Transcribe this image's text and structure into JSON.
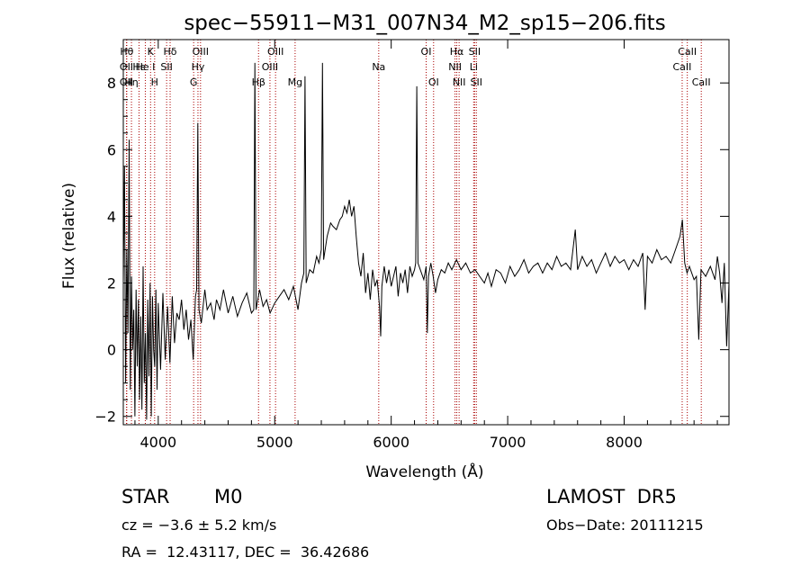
{
  "chart_data": {
    "type": "line",
    "title": "spec−55911−M31_007N34_M2_sp15−206.fits",
    "xlabel": "Wavelength (Å)",
    "ylabel": "Flux (relative)",
    "xlim": [
      3700,
      8900
    ],
    "ylim": [
      -2.25,
      9.3
    ],
    "x_ticks": [
      4000,
      5000,
      6000,
      7000,
      8000
    ],
    "y_ticks": [
      -2,
      0,
      2,
      4,
      6,
      8
    ],
    "grid": false,
    "legend": "none",
    "line_color": "#000000",
    "marker_line_color": "#aa0000",
    "series": [
      {
        "values": [
          [
            3700,
            2.0
          ],
          [
            3710,
            5.5
          ],
          [
            3720,
            -1.0
          ],
          [
            3730,
            3.0
          ],
          [
            3740,
            0.5
          ],
          [
            3750,
            6.3
          ],
          [
            3760,
            -1.2
          ],
          [
            3770,
            2.2
          ],
          [
            3780,
            0.0
          ],
          [
            3790,
            1.2
          ],
          [
            3800,
            -2.0
          ],
          [
            3810,
            1.8
          ],
          [
            3820,
            -0.5
          ],
          [
            3830,
            1.5
          ],
          [
            3840,
            -1.5
          ],
          [
            3850,
            1.0
          ],
          [
            3860,
            -1.8
          ],
          [
            3870,
            2.5
          ],
          [
            3880,
            -1.0
          ],
          [
            3890,
            0.5
          ],
          [
            3900,
            -2.1
          ],
          [
            3910,
            1.5
          ],
          [
            3920,
            -0.8
          ],
          [
            3930,
            2.0
          ],
          [
            3940,
            -2.0
          ],
          [
            3950,
            1.6
          ],
          [
            3960,
            0.0
          ],
          [
            3970,
            -0.5
          ],
          [
            3980,
            1.8
          ],
          [
            3990,
            -1.2
          ],
          [
            4000,
            1.4
          ],
          [
            4020,
            -0.6
          ],
          [
            4040,
            1.7
          ],
          [
            4060,
            -0.3
          ],
          [
            4080,
            1.3
          ],
          [
            4100,
            -0.4
          ],
          [
            4120,
            1.6
          ],
          [
            4140,
            0.2
          ],
          [
            4160,
            1.1
          ],
          [
            4180,
            0.9
          ],
          [
            4200,
            1.5
          ],
          [
            4220,
            0.6
          ],
          [
            4240,
            1.2
          ],
          [
            4260,
            0.3
          ],
          [
            4280,
            0.9
          ],
          [
            4300,
            -0.3
          ],
          [
            4320,
            1.6
          ],
          [
            4330,
            1.8
          ],
          [
            4340,
            6.8
          ],
          [
            4350,
            1.2
          ],
          [
            4370,
            0.8
          ],
          [
            4400,
            1.8
          ],
          [
            4420,
            1.2
          ],
          [
            4450,
            1.4
          ],
          [
            4480,
            0.9
          ],
          [
            4500,
            1.5
          ],
          [
            4530,
            1.2
          ],
          [
            4560,
            1.8
          ],
          [
            4600,
            1.1
          ],
          [
            4640,
            1.6
          ],
          [
            4680,
            1.0
          ],
          [
            4720,
            1.4
          ],
          [
            4760,
            1.7
          ],
          [
            4800,
            1.1
          ],
          [
            4820,
            1.2
          ],
          [
            4830,
            8.6
          ],
          [
            4840,
            1.2
          ],
          [
            4870,
            1.8
          ],
          [
            4900,
            1.3
          ],
          [
            4930,
            1.5
          ],
          [
            4960,
            1.1
          ],
          [
            5000,
            1.4
          ],
          [
            5040,
            1.6
          ],
          [
            5080,
            1.8
          ],
          [
            5120,
            1.5
          ],
          [
            5160,
            1.9
          ],
          [
            5200,
            1.2
          ],
          [
            5230,
            2.0
          ],
          [
            5250,
            2.3
          ],
          [
            5260,
            8.2
          ],
          [
            5270,
            2.0
          ],
          [
            5300,
            2.4
          ],
          [
            5330,
            2.3
          ],
          [
            5360,
            2.8
          ],
          [
            5380,
            2.6
          ],
          [
            5400,
            3.0
          ],
          [
            5410,
            8.6
          ],
          [
            5420,
            2.7
          ],
          [
            5450,
            3.4
          ],
          [
            5480,
            3.8
          ],
          [
            5500,
            3.7
          ],
          [
            5530,
            3.6
          ],
          [
            5560,
            3.9
          ],
          [
            5580,
            4.0
          ],
          [
            5600,
            4.3
          ],
          [
            5620,
            4.1
          ],
          [
            5640,
            4.5
          ],
          [
            5660,
            4.0
          ],
          [
            5680,
            4.3
          ],
          [
            5700,
            3.4
          ],
          [
            5720,
            2.6
          ],
          [
            5740,
            2.2
          ],
          [
            5760,
            2.9
          ],
          [
            5780,
            1.7
          ],
          [
            5800,
            2.3
          ],
          [
            5820,
            1.5
          ],
          [
            5840,
            2.4
          ],
          [
            5860,
            1.9
          ],
          [
            5880,
            2.1
          ],
          [
            5900,
            1.3
          ],
          [
            5910,
            0.4
          ],
          [
            5920,
            1.9
          ],
          [
            5940,
            2.5
          ],
          [
            5960,
            2.0
          ],
          [
            5980,
            2.4
          ],
          [
            6000,
            1.9
          ],
          [
            6020,
            2.2
          ],
          [
            6040,
            2.5
          ],
          [
            6060,
            1.6
          ],
          [
            6080,
            2.3
          ],
          [
            6100,
            2.0
          ],
          [
            6120,
            2.4
          ],
          [
            6140,
            1.7
          ],
          [
            6160,
            2.5
          ],
          [
            6180,
            2.2
          ],
          [
            6200,
            2.4
          ],
          [
            6210,
            2.6
          ],
          [
            6220,
            7.9
          ],
          [
            6230,
            2.6
          ],
          [
            6260,
            2.3
          ],
          [
            6280,
            2.1
          ],
          [
            6300,
            2.5
          ],
          [
            6310,
            0.5
          ],
          [
            6320,
            2.2
          ],
          [
            6340,
            2.6
          ],
          [
            6360,
            2.2
          ],
          [
            6380,
            1.7
          ],
          [
            6400,
            2.1
          ],
          [
            6430,
            2.4
          ],
          [
            6460,
            2.3
          ],
          [
            6490,
            2.6
          ],
          [
            6520,
            2.4
          ],
          [
            6560,
            2.7
          ],
          [
            6600,
            2.4
          ],
          [
            6640,
            2.6
          ],
          [
            6680,
            2.3
          ],
          [
            6720,
            2.4
          ],
          [
            6760,
            2.2
          ],
          [
            6800,
            2.0
          ],
          [
            6830,
            2.3
          ],
          [
            6860,
            1.9
          ],
          [
            6900,
            2.4
          ],
          [
            6940,
            2.3
          ],
          [
            6980,
            2.0
          ],
          [
            7020,
            2.5
          ],
          [
            7060,
            2.2
          ],
          [
            7100,
            2.4
          ],
          [
            7140,
            2.7
          ],
          [
            7180,
            2.3
          ],
          [
            7220,
            2.5
          ],
          [
            7260,
            2.6
          ],
          [
            7300,
            2.3
          ],
          [
            7340,
            2.6
          ],
          [
            7380,
            2.4
          ],
          [
            7420,
            2.8
          ],
          [
            7460,
            2.5
          ],
          [
            7500,
            2.6
          ],
          [
            7540,
            2.4
          ],
          [
            7580,
            3.6
          ],
          [
            7600,
            2.4
          ],
          [
            7640,
            2.8
          ],
          [
            7680,
            2.5
          ],
          [
            7720,
            2.7
          ],
          [
            7760,
            2.3
          ],
          [
            7800,
            2.6
          ],
          [
            7840,
            2.9
          ],
          [
            7880,
            2.5
          ],
          [
            7920,
            2.8
          ],
          [
            7960,
            2.6
          ],
          [
            8000,
            2.7
          ],
          [
            8040,
            2.4
          ],
          [
            8080,
            2.7
          ],
          [
            8120,
            2.5
          ],
          [
            8160,
            2.9
          ],
          [
            8180,
            1.2
          ],
          [
            8200,
            2.8
          ],
          [
            8240,
            2.6
          ],
          [
            8280,
            3.0
          ],
          [
            8320,
            2.7
          ],
          [
            8360,
            2.8
          ],
          [
            8400,
            2.6
          ],
          [
            8440,
            3.0
          ],
          [
            8480,
            3.4
          ],
          [
            8500,
            3.9
          ],
          [
            8520,
            2.6
          ],
          [
            8540,
            2.3
          ],
          [
            8560,
            2.5
          ],
          [
            8580,
            2.3
          ],
          [
            8600,
            2.1
          ],
          [
            8620,
            2.2
          ],
          [
            8640,
            0.3
          ],
          [
            8660,
            2.4
          ],
          [
            8700,
            2.2
          ],
          [
            8740,
            2.5
          ],
          [
            8780,
            2.1
          ],
          [
            8800,
            2.8
          ],
          [
            8820,
            2.3
          ],
          [
            8840,
            1.4
          ],
          [
            8860,
            2.6
          ],
          [
            8880,
            0.1
          ],
          [
            8900,
            2.0
          ]
        ]
      }
    ],
    "line_markers": [
      {
        "x": 3730,
        "label": "Hθ",
        "row": 0
      },
      {
        "x": 3727,
        "label": "OII",
        "row": 1
      },
      {
        "x": 3727,
        "label": "OII",
        "row": 2
      },
      {
        "x": 3770,
        "label": "Hη",
        "row": 2
      },
      {
        "x": 3835,
        "label": "Hε",
        "row": 1
      },
      {
        "x": 3889,
        "label": "He I",
        "row": 1
      },
      {
        "x": 3934,
        "label": "K",
        "row": 0
      },
      {
        "x": 3969,
        "label": "H",
        "row": 2
      },
      {
        "x": 4072,
        "label": "SII",
        "row": 1
      },
      {
        "x": 4102,
        "label": "Hδ",
        "row": 0
      },
      {
        "x": 4304,
        "label": "G",
        "row": 2
      },
      {
        "x": 4341,
        "label": "Hγ",
        "row": 1
      },
      {
        "x": 4363,
        "label": "OIII",
        "row": 0
      },
      {
        "x": 4861,
        "label": "Hβ",
        "row": 2
      },
      {
        "x": 4959,
        "label": "OIII",
        "row": 1
      },
      {
        "x": 5007,
        "label": "OIII",
        "row": 0
      },
      {
        "x": 5175,
        "label": "Mg",
        "row": 2
      },
      {
        "x": 5893,
        "label": "Na",
        "row": 1
      },
      {
        "x": 6300,
        "label": "OI",
        "row": 0
      },
      {
        "x": 6364,
        "label": "OI",
        "row": 2
      },
      {
        "x": 6548,
        "label": "NII",
        "row": 1
      },
      {
        "x": 6563,
        "label": "Hα",
        "row": 0
      },
      {
        "x": 6583,
        "label": "NII",
        "row": 2
      },
      {
        "x": 6708,
        "label": "Li",
        "row": 1
      },
      {
        "x": 6716,
        "label": "SII",
        "row": 0
      },
      {
        "x": 6731,
        "label": "SII",
        "row": 2
      },
      {
        "x": 8498,
        "label": "CaII",
        "row": 1
      },
      {
        "x": 8542,
        "label": "CaII",
        "row": 0
      },
      {
        "x": 8662,
        "label": "CaII",
        "row": 2
      }
    ]
  },
  "info": {
    "class_label": "STAR",
    "subclass": "M0",
    "survey": "LAMOST  DR5",
    "cz_text": "cz = −3.6 ± 5.2 km/s",
    "obs_date": "Obs−Date: 20111215",
    "radec": "RA =  12.43117, DEC =  36.42686"
  }
}
